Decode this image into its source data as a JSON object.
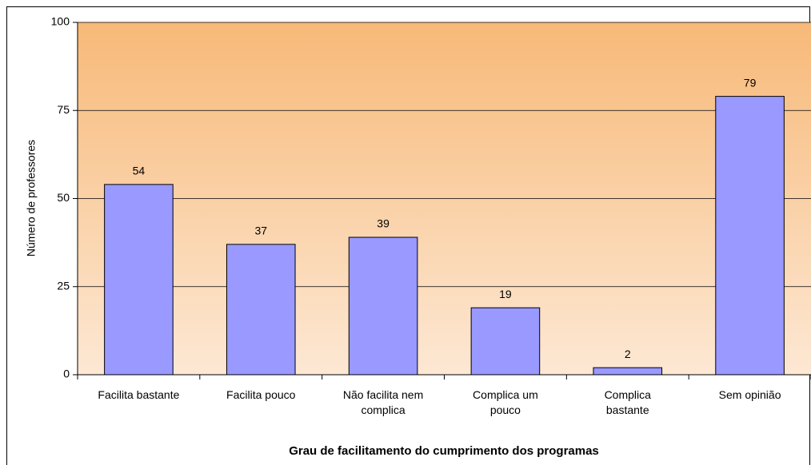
{
  "chart_data": {
    "type": "bar",
    "xlabel": "Grau de facilitamento do cumprimento dos programas",
    "ylabel": "Número de professores",
    "categories": [
      "Facilita bastante",
      "Facilita pouco",
      "Não facilita nem complica",
      "Complica um pouco",
      "Complica bastante",
      "Sem opinião"
    ],
    "values": [
      54,
      37,
      39,
      19,
      2,
      79
    ],
    "color": "#9999ff",
    "ylim": [
      0,
      100
    ],
    "yticks": [
      0,
      25,
      50,
      75,
      100
    ],
    "grid": true
  }
}
